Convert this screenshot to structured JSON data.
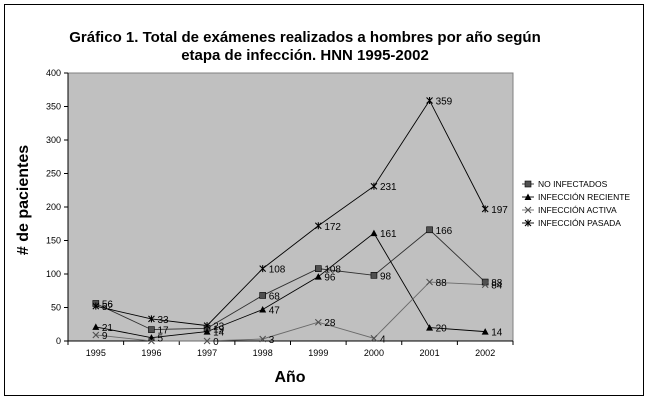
{
  "chart_data": {
    "type": "line",
    "title_lines": [
      "Gráfico 1. Total de exámenes realizados a hombres por año según",
      "etapa de infección. HNN 1995-2002"
    ],
    "xlabel": "Año",
    "ylabel": "# de pacientes",
    "categories": [
      "1995",
      "1996",
      "1997",
      "1998",
      "1999",
      "2000",
      "2001",
      "2002"
    ],
    "ylim": [
      0,
      400
    ],
    "yticks": [
      "0",
      "50",
      "100",
      "150",
      "200",
      "250",
      "300",
      "350",
      "400"
    ],
    "grid": false,
    "plot_background": "#c0c0c0",
    "legend_position": "right",
    "series": [
      {
        "name": "NO INFECTADOS",
        "marker": "square",
        "values": [
          56,
          17,
          19,
          68,
          108,
          98,
          166,
          88
        ],
        "labels": [
          "56",
          "17",
          "19",
          "68",
          "108",
          "98",
          "166",
          "88"
        ]
      },
      {
        "name": "INFECCIÓN RECIENTE",
        "marker": "triangle",
        "values": [
          21,
          5,
          14,
          47,
          96,
          161,
          20,
          14
        ],
        "labels": [
          "21",
          "5",
          "14",
          "47",
          "96",
          "161",
          "20",
          "14"
        ]
      },
      {
        "name": "INFECCIÓN ACTIVA",
        "marker": "x",
        "values": [
          9,
          0,
          0,
          3,
          28,
          4,
          88,
          84
        ],
        "labels": [
          "9",
          "",
          "0",
          "3",
          "28",
          "4",
          "88",
          "84"
        ]
      },
      {
        "name": "INFECCIÓN PASADA",
        "marker": "star",
        "values": [
          52,
          33,
          23,
          108,
          172,
          231,
          359,
          197
        ],
        "labels": [
          "52",
          "33",
          "23",
          "108",
          "172",
          "231",
          "359",
          "197"
        ]
      }
    ]
  }
}
